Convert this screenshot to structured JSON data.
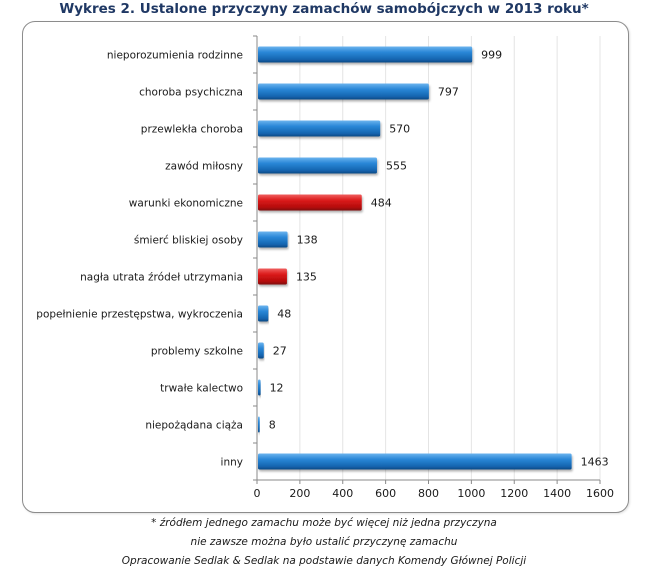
{
  "chart_data": {
    "type": "bar",
    "orientation": "horizontal",
    "title": "Wykres 2. Ustalone przyczyny zamachów samobójczych w 2013 roku*",
    "categories": [
      "nieporozumienia rodzinne",
      "choroba psychiczna",
      "przewlekła choroba",
      "zawód miłosny",
      "warunki ekonomiczne",
      "śmierć bliskiej osoby",
      "nagła utrata  źródeł utrzymania",
      "popełnienie przestępstwa, wykroczenia",
      "problemy szkolne",
      "trwałe kalectwo",
      "niepożądana ciąża",
      "inny"
    ],
    "values": [
      999,
      797,
      570,
      555,
      484,
      138,
      135,
      48,
      27,
      12,
      8,
      1463
    ],
    "highlighted": [
      false,
      false,
      false,
      false,
      true,
      false,
      true,
      false,
      false,
      false,
      false,
      false
    ],
    "xlim": [
      0,
      1600
    ],
    "xticks": [
      0,
      200,
      400,
      600,
      800,
      1000,
      1200,
      1400,
      1600
    ],
    "xlabel": "",
    "ylabel": "",
    "grid": true,
    "legend": "none",
    "colors": {
      "default": "#1f78c8",
      "highlight": "#d01010"
    }
  },
  "notes": [
    "* źródłem jednego zamachu może być więcej  niż jedna przyczyna",
    "nie zawsze można było ustalić przyczynę zamachu",
    "Opracowanie Sedlak & Sedlak na podstawie danych Komendy Głównej  Policji"
  ]
}
